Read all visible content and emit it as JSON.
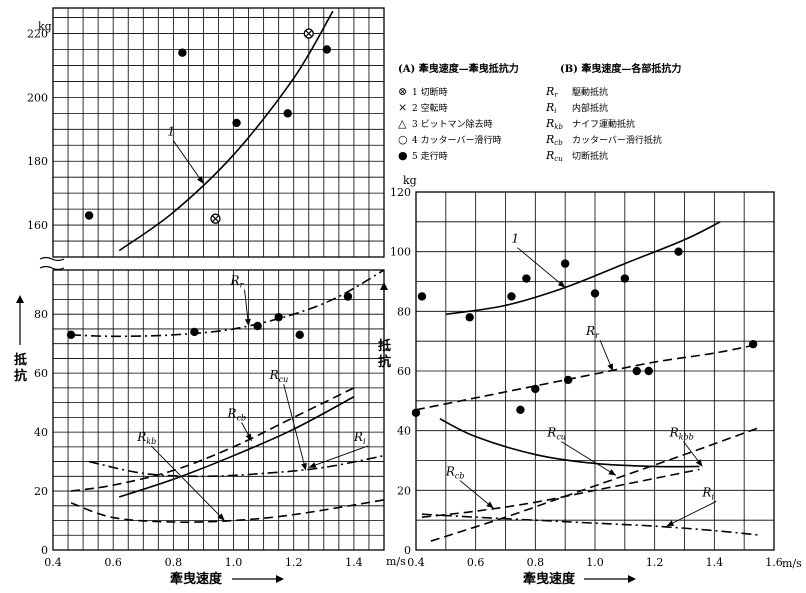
{
  "legend": {
    "header_a": "(A) 牽曳速度—牽曳抵抗力",
    "header_b": "(B) 牽曳速度—各部抵抗力",
    "markers": [
      {
        "symbol": "⊗",
        "label": "1 切断時"
      },
      {
        "symbol": "×",
        "label": "2 空転時"
      },
      {
        "symbol": "△",
        "label": "3 ビットマン除去時"
      },
      {
        "symbol": "○",
        "label": "4 カッターバー滑行時"
      },
      {
        "symbol": "●",
        "label": "5 走行時"
      }
    ],
    "components": [
      {
        "sym": "R",
        "sub": "r",
        "label": "駆動抵抗"
      },
      {
        "sym": "R",
        "sub": "i",
        "label": "内部抵抗"
      },
      {
        "sym": "R",
        "sub": "kb",
        "label": "ナイフ運動抵抗"
      },
      {
        "sym": "R",
        "sub": "cb",
        "label": "カッターバー滑行抵抗"
      },
      {
        "sym": "R",
        "sub": "cu",
        "label": "切断抵抗"
      }
    ]
  },
  "chart_data": [
    {
      "type": "scatter",
      "panel": "A",
      "ylabel_unit": "kg",
      "ylabel": "抵抗",
      "xlabel": "牽曳速度",
      "x_unit": "m/s",
      "x_ticks": [
        "0.4",
        "0.6",
        "0.8",
        "1.0",
        "1.2",
        "1.4"
      ],
      "xlim": [
        0.4,
        1.5
      ],
      "upper_y_ticks": [
        "160",
        "180",
        "200",
        "220"
      ],
      "upper_ylim": [
        150,
        228
      ],
      "lower_y_ticks": [
        "0",
        "20",
        "40",
        "60",
        "80"
      ],
      "lower_ylim": [
        0,
        95
      ],
      "upper_points_filled": [
        [
          0.52,
          163
        ],
        [
          0.83,
          214
        ],
        [
          1.01,
          192
        ],
        [
          1.18,
          195
        ],
        [
          1.31,
          215
        ]
      ],
      "upper_points_crossed": [
        [
          0.94,
          162
        ],
        [
          1.25,
          220
        ]
      ],
      "upper_curves": [
        {
          "name": "1",
          "label_pos": [
            0.78,
            188
          ],
          "arrow_to": [
            0.9,
            173
          ],
          "points": [
            [
              0.62,
              152
            ],
            [
              0.8,
              164
            ],
            [
              1.0,
              182
            ],
            [
              1.2,
              206
            ],
            [
              1.33,
              227
            ]
          ],
          "style": "solid"
        }
      ],
      "lower_points_filled": [
        [
          0.46,
          73
        ],
        [
          0.87,
          74
        ],
        [
          1.08,
          76
        ],
        [
          1.15,
          79
        ],
        [
          1.22,
          73
        ],
        [
          1.38,
          86
        ]
      ],
      "lower_curves": [
        {
          "name": "R",
          "sub": "r",
          "style": "dashdot",
          "label_pos": [
            0.99,
            90
          ],
          "arrow_to": [
            1.05,
            76
          ],
          "points": [
            [
              0.46,
              73
            ],
            [
              0.6,
              72.5
            ],
            [
              0.8,
              73
            ],
            [
              1.0,
              75
            ],
            [
              1.2,
              80
            ],
            [
              1.35,
              86
            ],
            [
              1.5,
              95
            ]
          ]
        },
        {
          "name": "R",
          "sub": "cu",
          "style": "solid",
          "label_pos": [
            1.12,
            58
          ],
          "arrow_to": [
            1.24,
            27
          ],
          "points": [
            [
              0.62,
              18
            ],
            [
              0.8,
              24
            ],
            [
              1.0,
              32
            ],
            [
              1.2,
              41
            ],
            [
              1.4,
              52
            ]
          ]
        },
        {
          "name": "R",
          "sub": "cb",
          "style": "dashed",
          "label_pos": [
            0.98,
            45
          ],
          "arrow_to": [
            1.06,
            37
          ],
          "points": [
            [
              0.46,
              20
            ],
            [
              0.6,
              22
            ],
            [
              0.8,
              27
            ],
            [
              1.0,
              35
            ],
            [
              1.2,
              45
            ],
            [
              1.4,
              55
            ]
          ]
        },
        {
          "name": "R",
          "sub": "kb",
          "style": "dashed",
          "label_pos": [
            0.68,
            37
          ],
          "arrow_to": [
            0.97,
            10
          ],
          "points": [
            [
              0.46,
              16
            ],
            [
              0.6,
              11
            ],
            [
              0.8,
              9.5
            ],
            [
              1.0,
              10
            ],
            [
              1.2,
              12
            ],
            [
              1.5,
              17
            ]
          ]
        },
        {
          "name": "R",
          "sub": "i",
          "style": "dashdot",
          "label_pos": [
            1.4,
            37
          ],
          "arrow_to": [
            1.25,
            28
          ],
          "points": [
            [
              0.52,
              30
            ],
            [
              0.7,
              26
            ],
            [
              0.9,
              25
            ],
            [
              1.1,
              26
            ],
            [
              1.3,
              28
            ],
            [
              1.5,
              32
            ]
          ]
        }
      ]
    },
    {
      "type": "scatter",
      "panel": "B",
      "ylabel_unit": "kg",
      "ylabel": "抵抗",
      "xlabel": "牽曳速度",
      "x_unit": "m/s",
      "x_ticks": [
        "0.4",
        "0.6",
        "0.8",
        "1.0",
        "1.2",
        "1.4",
        "1.6"
      ],
      "xlim": [
        0.4,
        1.6
      ],
      "y_ticks": [
        "0",
        "20",
        "40",
        "60",
        "80",
        "100",
        "120"
      ],
      "ylim": [
        0,
        120
      ],
      "points_filled": [
        [
          0.42,
          85
        ],
        [
          0.58,
          78
        ],
        [
          0.72,
          85
        ],
        [
          0.77,
          91
        ],
        [
          0.9,
          96
        ],
        [
          1.0,
          86
        ],
        [
          1.1,
          91
        ],
        [
          1.28,
          100
        ],
        [
          0.4,
          46
        ],
        [
          0.75,
          47
        ],
        [
          0.8,
          54
        ],
        [
          0.91,
          57
        ],
        [
          1.14,
          60
        ],
        [
          1.18,
          60
        ],
        [
          1.53,
          69
        ]
      ],
      "curves": [
        {
          "name": "1",
          "style": "solid",
          "label_pos": [
            0.72,
            103
          ],
          "arrow_to": [
            0.9,
            88
          ],
          "points": [
            [
              0.5,
              79
            ],
            [
              0.7,
              82
            ],
            [
              0.9,
              88
            ],
            [
              1.1,
              96
            ],
            [
              1.3,
              104
            ],
            [
              1.42,
              110
            ]
          ]
        },
        {
          "name": "R",
          "sub": "r",
          "style": "dashed",
          "label_pos": [
            0.97,
            72
          ],
          "arrow_to": [
            1.06,
            60
          ],
          "points": [
            [
              0.4,
              47
            ],
            [
              0.6,
              51
            ],
            [
              0.8,
              55
            ],
            [
              1.0,
              59
            ],
            [
              1.2,
              63
            ],
            [
              1.4,
              66
            ],
            [
              1.55,
              69
            ]
          ]
        },
        {
          "name": "R",
          "sub": "cu",
          "style": "solid",
          "label_pos": [
            0.84,
            38
          ],
          "arrow_to": [
            1.07,
            25
          ],
          "points": [
            [
              0.48,
              44
            ],
            [
              0.6,
              38
            ],
            [
              0.8,
              32
            ],
            [
              1.0,
              29
            ],
            [
              1.2,
              28
            ],
            [
              1.35,
              28
            ]
          ]
        },
        {
          "name": "R",
          "sub": "kbb",
          "style": "dashed",
          "label_pos": [
            1.25,
            38
          ],
          "arrow_to": [
            1.36,
            28
          ],
          "points": [
            [
              0.45,
              3
            ],
            [
              0.7,
              11
            ],
            [
              0.9,
              18
            ],
            [
              1.1,
              25
            ],
            [
              1.3,
              32
            ],
            [
              1.55,
              41
            ]
          ]
        },
        {
          "name": "R",
          "sub": "cb",
          "style": "dashed",
          "label_pos": [
            0.5,
            25
          ],
          "arrow_to": [
            0.66,
            14
          ],
          "points": [
            [
              0.42,
              11
            ],
            [
              0.6,
              13
            ],
            [
              0.8,
              16
            ],
            [
              1.0,
              20
            ],
            [
              1.2,
              24
            ],
            [
              1.35,
              27
            ]
          ]
        },
        {
          "name": "R",
          "sub": "i",
          "style": "dashdot",
          "label_pos": [
            1.36,
            18
          ],
          "arrow_to": [
            1.24,
            8
          ],
          "points": [
            [
              0.42,
              12
            ],
            [
              0.6,
              11
            ],
            [
              0.8,
              10
            ],
            [
              1.0,
              9
            ],
            [
              1.2,
              8
            ],
            [
              1.4,
              6.5
            ],
            [
              1.55,
              5
            ]
          ]
        }
      ]
    }
  ],
  "labels": {
    "unit_kg": "kg",
    "unit_ms": "m/s",
    "xlabel_a": "牽曳速度",
    "xlabel_b": "牽曳速度",
    "ylabel_a": "抵抗",
    "ylabel_b": "抵抗"
  }
}
